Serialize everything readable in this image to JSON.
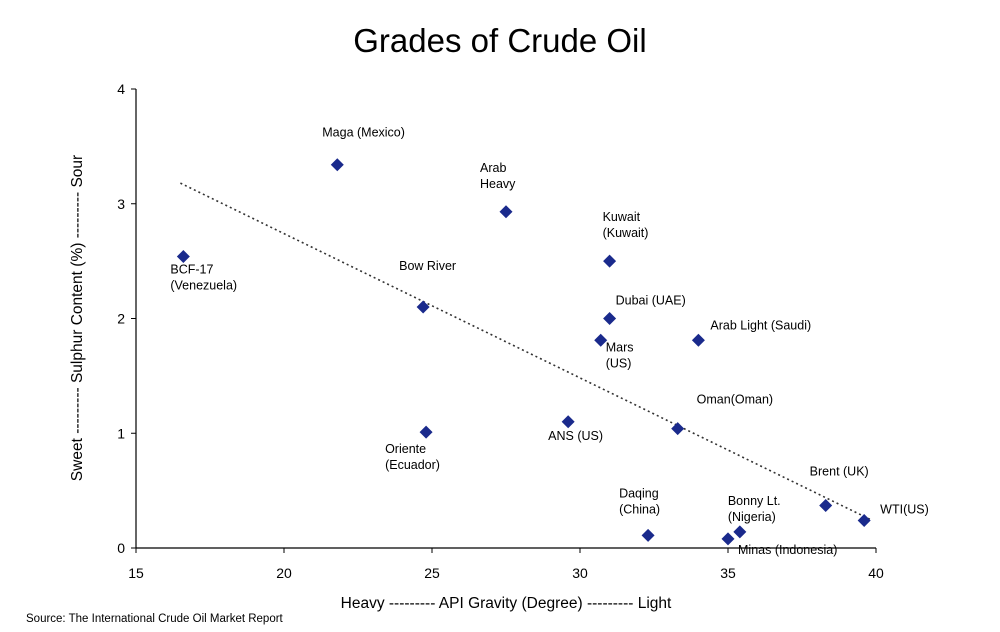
{
  "source": "Source: The International Crude Oil Market Report",
  "chart_data": {
    "type": "scatter",
    "title": "Grades of Crude Oil",
    "xlabel": "Heavy --------- API Gravity (Degree) --------- Light",
    "ylabel": "Sweet --------- Sulphur Content (%) --------- Sour",
    "xlim": [
      15,
      40
    ],
    "ylim": [
      0,
      4
    ],
    "xticks": [
      15,
      20,
      25,
      30,
      35,
      40
    ],
    "yticks": [
      0,
      1,
      2,
      3,
      4
    ],
    "grid": false,
    "marker_color": "#1a2a8c",
    "trendline": {
      "x": [
        16.5,
        39.8
      ],
      "y": [
        3.18,
        0.25
      ],
      "style": "dotted"
    },
    "points": [
      {
        "label": [
          "Maga (Mexico)"
        ],
        "x": 21.8,
        "y": 3.34
      },
      {
        "label": [
          "Arab",
          "Heavy"
        ],
        "x": 27.5,
        "y": 2.93
      },
      {
        "label": [
          "BCF-17",
          "(Venezuela)"
        ],
        "x": 16.6,
        "y": 2.54
      },
      {
        "label": [
          "Kuwait",
          "(Kuwait)"
        ],
        "x": 31.0,
        "y": 2.5
      },
      {
        "label": [
          "Bow River"
        ],
        "x": 24.7,
        "y": 2.1
      },
      {
        "label": [
          "Dubai (UAE)"
        ],
        "x": 31.0,
        "y": 2.0
      },
      {
        "label": [
          "Mars",
          "(US)"
        ],
        "x": 30.7,
        "y": 1.81
      },
      {
        "label": [
          "Arab Light (Saudi)"
        ],
        "x": 34.0,
        "y": 1.81
      },
      {
        "label": [
          "Oman(Oman)"
        ],
        "x": 33.3,
        "y": 1.04
      },
      {
        "label": [
          "ANS (US)"
        ],
        "x": 29.6,
        "y": 1.1
      },
      {
        "label": [
          "Oriente",
          "(Ecuador)"
        ],
        "x": 24.8,
        "y": 1.01
      },
      {
        "label": [
          "Brent (UK)"
        ],
        "x": 38.3,
        "y": 0.37
      },
      {
        "label": [
          "WTI(US)"
        ],
        "x": 39.6,
        "y": 0.24
      },
      {
        "label": [
          "Daqing",
          "(China)"
        ],
        "x": 32.3,
        "y": 0.11
      },
      {
        "label": [
          "Bonny Lt.",
          "(Nigeria)"
        ],
        "x": 35.4,
        "y": 0.14
      },
      {
        "label": [
          "Minas (Indonesia)"
        ],
        "x": 35.0,
        "y": 0.08
      }
    ]
  }
}
